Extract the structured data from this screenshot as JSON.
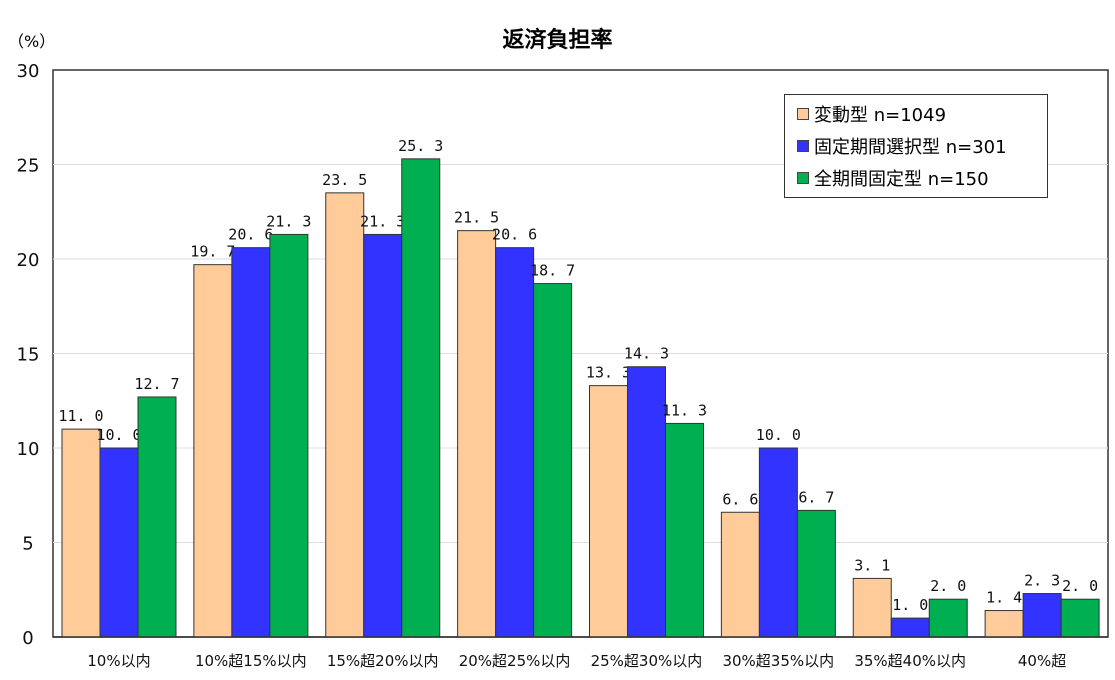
{
  "chart_data": {
    "type": "bar",
    "title": "返済負担率",
    "ylabel": "（%）",
    "ylim": [
      0,
      30
    ],
    "yticks": [
      0,
      5,
      10,
      15,
      20,
      25,
      30
    ],
    "grid": true,
    "legend_position": "top-right",
    "categories": [
      "10%以内",
      "10%超15%以内",
      "15%超20%以内",
      "20%超25%以内",
      "25%超30%以内",
      "30%超35%以内",
      "35%超40%以内",
      "40%超"
    ],
    "series": [
      {
        "name": "変動型  n=1049",
        "color": "#FFCC99",
        "values": [
          11.0,
          19.7,
          23.5,
          21.5,
          13.3,
          6.6,
          3.1,
          1.4
        ]
      },
      {
        "name": "固定期間選択型  n=301",
        "color": "#3333FF",
        "values": [
          10.0,
          20.6,
          21.3,
          20.6,
          14.3,
          10.0,
          1.0,
          2.3
        ]
      },
      {
        "name": "全期間固定型  n=150",
        "color": "#00B050",
        "values": [
          12.7,
          21.3,
          25.3,
          18.7,
          11.3,
          6.7,
          2.0,
          2.0
        ]
      }
    ]
  }
}
